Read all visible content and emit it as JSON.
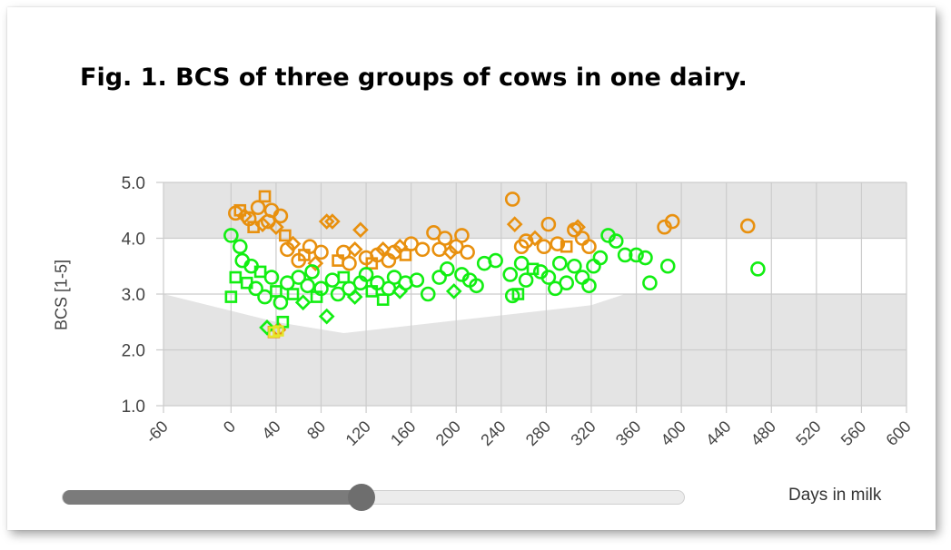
{
  "title": "Fig. 1. BCS of three groups of cows in one dairy.",
  "chart_data": {
    "type": "scatter",
    "xlabel": "Days in milk",
    "ylabel": "BCS [1-5]",
    "xlim": [
      -60,
      600
    ],
    "ylim": [
      1.0,
      5.0
    ],
    "x_ticks": [
      "-60",
      "0",
      "40",
      "80",
      "120",
      "160",
      "200",
      "240",
      "280",
      "320",
      "360",
      "400",
      "440",
      "480",
      "520",
      "560",
      "600"
    ],
    "y_ticks": [
      "1.0",
      "2.0",
      "3.0",
      "4.0",
      "5.0"
    ],
    "grid": true,
    "background": "#e4e4e4",
    "target_band": {
      "color": "#ffffff",
      "upper": [
        [
          -60,
          4.0
        ],
        [
          600,
          4.0
        ]
      ],
      "lower": [
        [
          -60,
          3.0
        ],
        [
          40,
          2.5
        ],
        [
          100,
          2.3
        ],
        [
          320,
          2.8
        ],
        [
          350,
          3.0
        ],
        [
          600,
          3.0
        ]
      ]
    },
    "series": [
      {
        "color": "#e8900e",
        "points": [
          [
            4,
            4.45,
            "o"
          ],
          [
            8,
            4.5,
            "s"
          ],
          [
            12,
            4.4,
            "d"
          ],
          [
            16,
            4.35,
            "o"
          ],
          [
            20,
            4.2,
            "s"
          ],
          [
            24,
            4.55,
            "o"
          ],
          [
            28,
            4.25,
            "d"
          ],
          [
            30,
            4.75,
            "s"
          ],
          [
            33,
            4.3,
            "o"
          ],
          [
            36,
            4.5,
            "o"
          ],
          [
            40,
            4.2,
            "d"
          ],
          [
            44,
            4.4,
            "o"
          ],
          [
            48,
            4.05,
            "s"
          ],
          [
            50,
            3.8,
            "o"
          ],
          [
            55,
            3.9,
            "d"
          ],
          [
            60,
            3.6,
            "o"
          ],
          [
            65,
            3.7,
            "s"
          ],
          [
            70,
            3.85,
            "o"
          ],
          [
            75,
            3.55,
            "d"
          ],
          [
            80,
            3.75,
            "o"
          ],
          [
            85,
            4.3,
            "d"
          ],
          [
            90,
            4.3,
            "d"
          ],
          [
            95,
            3.6,
            "s"
          ],
          [
            100,
            3.75,
            "o"
          ],
          [
            105,
            3.55,
            "o"
          ],
          [
            110,
            3.8,
            "d"
          ],
          [
            115,
            4.15,
            "d"
          ],
          [
            120,
            3.65,
            "o"
          ],
          [
            125,
            3.55,
            "s"
          ],
          [
            130,
            3.7,
            "o"
          ],
          [
            135,
            3.8,
            "d"
          ],
          [
            140,
            3.6,
            "o"
          ],
          [
            145,
            3.75,
            "o"
          ],
          [
            150,
            3.85,
            "d"
          ],
          [
            155,
            3.7,
            "s"
          ],
          [
            160,
            3.9,
            "o"
          ],
          [
            170,
            3.8,
            "o"
          ],
          [
            180,
            4.1,
            "o"
          ],
          [
            185,
            3.8,
            "o"
          ],
          [
            190,
            4.0,
            "o"
          ],
          [
            195,
            3.75,
            "d"
          ],
          [
            200,
            3.85,
            "o"
          ],
          [
            205,
            4.05,
            "o"
          ],
          [
            210,
            3.75,
            "o"
          ],
          [
            250,
            4.7,
            "o"
          ],
          [
            252,
            4.25,
            "d"
          ],
          [
            258,
            3.85,
            "o"
          ],
          [
            262,
            3.95,
            "o"
          ],
          [
            270,
            4.0,
            "d"
          ],
          [
            278,
            3.85,
            "o"
          ],
          [
            282,
            4.25,
            "o"
          ],
          [
            290,
            3.9,
            "o"
          ],
          [
            298,
            3.85,
            "s"
          ],
          [
            305,
            4.15,
            "o"
          ],
          [
            308,
            4.2,
            "d"
          ],
          [
            312,
            4.0,
            "o"
          ],
          [
            318,
            3.85,
            "o"
          ],
          [
            385,
            4.2,
            "o"
          ],
          [
            392,
            4.3,
            "o"
          ],
          [
            459,
            4.22,
            "o"
          ],
          [
            38,
            2.32,
            "s"
          ],
          [
            42,
            2.36,
            "d"
          ]
        ]
      },
      {
        "color": "#12ee12",
        "points": [
          [
            0,
            4.05,
            "o"
          ],
          [
            0,
            2.95,
            "s"
          ],
          [
            4,
            3.3,
            "s"
          ],
          [
            8,
            3.85,
            "o"
          ],
          [
            10,
            3.6,
            "o"
          ],
          [
            14,
            3.2,
            "s"
          ],
          [
            18,
            3.5,
            "o"
          ],
          [
            22,
            3.1,
            "o"
          ],
          [
            26,
            3.4,
            "s"
          ],
          [
            30,
            2.95,
            "o"
          ],
          [
            32,
            2.4,
            "d"
          ],
          [
            36,
            3.3,
            "o"
          ],
          [
            40,
            3.05,
            "s"
          ],
          [
            44,
            2.85,
            "o"
          ],
          [
            46,
            2.5,
            "s"
          ],
          [
            50,
            3.2,
            "o"
          ],
          [
            55,
            3.0,
            "s"
          ],
          [
            60,
            3.3,
            "o"
          ],
          [
            64,
            2.85,
            "d"
          ],
          [
            68,
            3.15,
            "o"
          ],
          [
            72,
            3.4,
            "o"
          ],
          [
            76,
            2.95,
            "s"
          ],
          [
            80,
            3.1,
            "o"
          ],
          [
            85,
            2.6,
            "d"
          ],
          [
            90,
            3.25,
            "o"
          ],
          [
            95,
            3.0,
            "o"
          ],
          [
            100,
            3.3,
            "s"
          ],
          [
            105,
            3.1,
            "o"
          ],
          [
            110,
            2.95,
            "d"
          ],
          [
            115,
            3.2,
            "o"
          ],
          [
            120,
            3.35,
            "o"
          ],
          [
            125,
            3.05,
            "s"
          ],
          [
            130,
            3.2,
            "o"
          ],
          [
            135,
            2.9,
            "s"
          ],
          [
            140,
            3.1,
            "o"
          ],
          [
            145,
            3.3,
            "o"
          ],
          [
            150,
            3.05,
            "d"
          ],
          [
            155,
            3.2,
            "o"
          ],
          [
            165,
            3.25,
            "o"
          ],
          [
            175,
            3.0,
            "o"
          ],
          [
            185,
            3.3,
            "o"
          ],
          [
            192,
            3.45,
            "o"
          ],
          [
            198,
            3.05,
            "d"
          ],
          [
            205,
            3.35,
            "o"
          ],
          [
            212,
            3.25,
            "o"
          ],
          [
            218,
            3.15,
            "o"
          ],
          [
            225,
            3.55,
            "o"
          ],
          [
            235,
            3.6,
            "o"
          ],
          [
            248,
            3.35,
            "o"
          ],
          [
            250,
            2.97,
            "o"
          ],
          [
            255,
            3.0,
            "s"
          ],
          [
            258,
            3.55,
            "o"
          ],
          [
            262,
            3.25,
            "o"
          ],
          [
            268,
            3.45,
            "s"
          ],
          [
            275,
            3.4,
            "o"
          ],
          [
            282,
            3.3,
            "o"
          ],
          [
            288,
            3.1,
            "o"
          ],
          [
            292,
            3.55,
            "o"
          ],
          [
            298,
            3.2,
            "o"
          ],
          [
            305,
            3.5,
            "o"
          ],
          [
            312,
            3.3,
            "o"
          ],
          [
            318,
            3.15,
            "o"
          ],
          [
            322,
            3.5,
            "o"
          ],
          [
            328,
            3.65,
            "o"
          ],
          [
            335,
            4.05,
            "o"
          ],
          [
            342,
            3.95,
            "o"
          ],
          [
            350,
            3.7,
            "o"
          ],
          [
            360,
            3.7,
            "o"
          ],
          [
            368,
            3.65,
            "o"
          ],
          [
            372,
            3.2,
            "o"
          ],
          [
            388,
            3.5,
            "o"
          ],
          [
            468,
            3.45,
            "o"
          ]
        ]
      }
    ]
  },
  "slider": {
    "value": 0.48,
    "track_color": "#ececec",
    "fill_color": "#7b7b7b"
  }
}
